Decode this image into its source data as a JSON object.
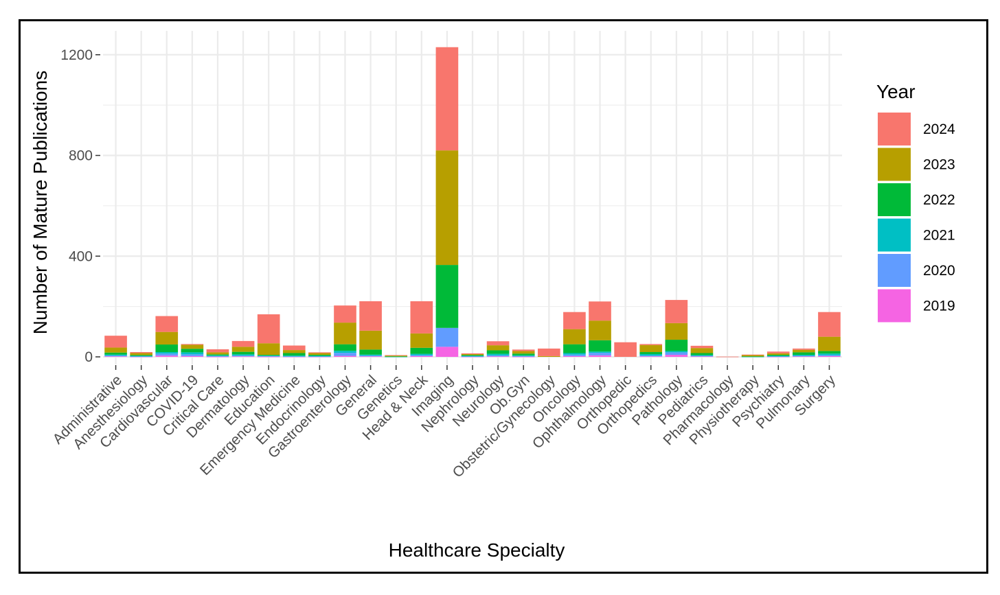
{
  "chart_data": {
    "type": "bar",
    "stacked": true,
    "xlabel": "Healthcare Specialty",
    "ylabel": "Number of Mature Publications",
    "ylim": [
      0,
      1280
    ],
    "yticks": [
      0,
      400,
      800,
      1200
    ],
    "grid": true,
    "legend_title": "Year",
    "legend_position": "right",
    "categories": [
      "Administrative",
      "Anesthesiology",
      "Cardiovascular",
      "COVID-19",
      "Critical Care",
      "Dermatology",
      "Education",
      "Emergency Medicine",
      "Endocrinology",
      "Gastroenterology",
      "General",
      "Genetics",
      "Head & Neck",
      "Imaging",
      "Nephrology",
      "Neurology",
      "Ob.Gyn",
      "Obstetric/Gynecology",
      "Oncology",
      "Ophthalmology",
      "Orthopedic",
      "Orthopedics",
      "Pathology",
      "Pediatrics",
      "Pharmacology",
      "Physiotherapy",
      "Psychiatry",
      "Pulmonary",
      "Surgery"
    ],
    "series": [
      {
        "name": "2019",
        "color": "#F564E3",
        "values": [
          2,
          1,
          5,
          3,
          1,
          2,
          1,
          1,
          1,
          4,
          2,
          0,
          3,
          40,
          1,
          2,
          1,
          0,
          3,
          6,
          0,
          2,
          8,
          2,
          0,
          0,
          1,
          2,
          3
        ]
      },
      {
        "name": "2020",
        "color": "#619CFF",
        "values": [
          3,
          1,
          8,
          7,
          2,
          3,
          2,
          1,
          1,
          12,
          3,
          0,
          4,
          75,
          1,
          4,
          2,
          0,
          6,
          10,
          0,
          3,
          10,
          2,
          0,
          0,
          1,
          2,
          4
        ]
      },
      {
        "name": "2021",
        "color": "#00BFC4",
        "values": [
          4,
          2,
          6,
          8,
          3,
          5,
          2,
          3,
          2,
          8,
          4,
          1,
          5,
          0,
          2,
          6,
          3,
          0,
          6,
          5,
          0,
          6,
          5,
          3,
          0,
          1,
          2,
          4,
          6
        ]
      },
      {
        "name": "2022",
        "color": "#00BA38",
        "values": [
          8,
          3,
          30,
          14,
          4,
          10,
          3,
          10,
          4,
          26,
          20,
          1,
          24,
          250,
          3,
          14,
          7,
          0,
          35,
          45,
          0,
          8,
          45,
          8,
          0,
          1,
          4,
          10,
          10
        ]
      },
      {
        "name": "2023",
        "color": "#B79F00",
        "values": [
          20,
          8,
          50,
          16,
          8,
          20,
          46,
          12,
          7,
          86,
          75,
          3,
          57,
          455,
          4,
          20,
          10,
          3,
          60,
          78,
          0,
          28,
          66,
          20,
          0,
          5,
          6,
          10,
          57
        ]
      },
      {
        "name": "2024",
        "color": "#F8766D",
        "values": [
          47,
          4,
          63,
          3,
          12,
          23,
          115,
          18,
          3,
          68,
          117,
          2,
          128,
          410,
          3,
          16,
          6,
          30,
          68,
          76,
          58,
          4,
          92,
          9,
          1,
          2,
          7,
          5,
          98
        ]
      }
    ],
    "legend_order": [
      "2024",
      "2023",
      "2022",
      "2021",
      "2020",
      "2019"
    ]
  }
}
